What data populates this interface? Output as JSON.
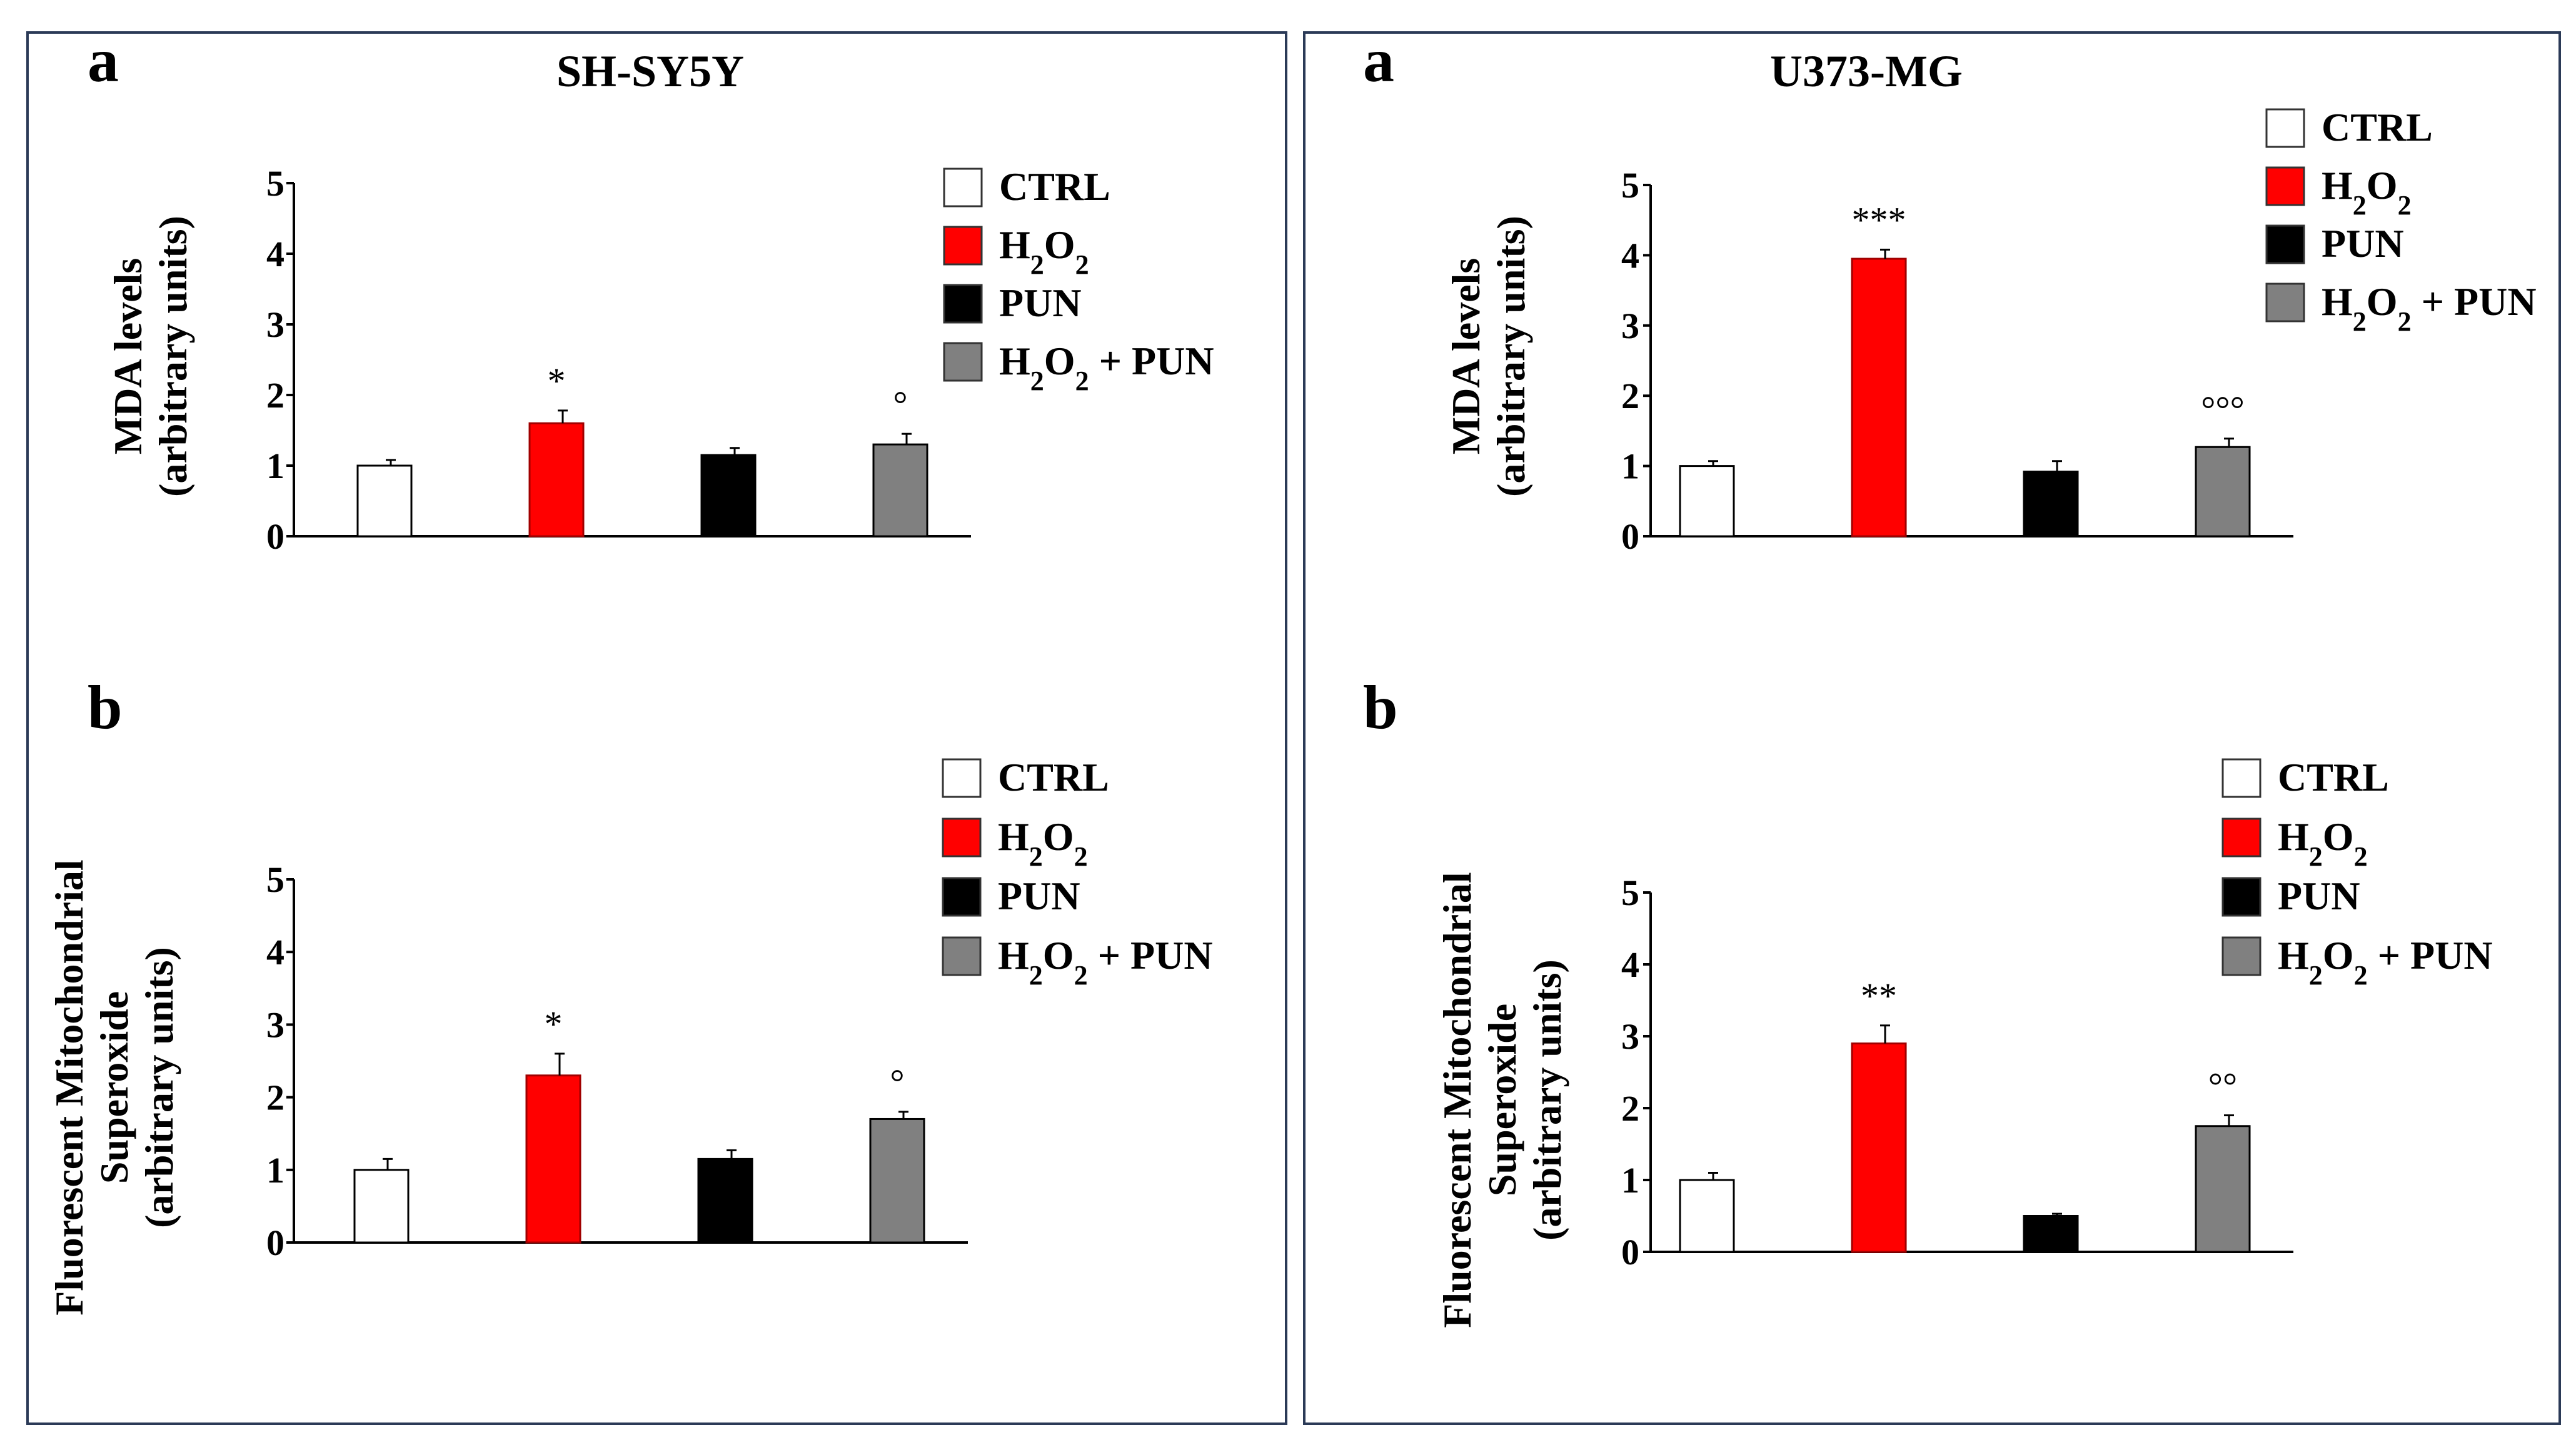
{
  "figure": {
    "left_title": "SH-SY5Y",
    "right_title": "U373-MG",
    "panel_labels": [
      "a",
      "b",
      "a",
      "b"
    ],
    "legend": [
      {
        "label": "CTRL",
        "color": "#ffffff"
      },
      {
        "label": "H2O2",
        "color": "#ff0000"
      },
      {
        "label": "PUN",
        "color": "#000000"
      },
      {
        "label": "H2O2 + PUN",
        "color": "#808080"
      }
    ]
  },
  "chart_data": [
    {
      "type": "bar",
      "cell_line": "SH-SY5Y",
      "panel": "a",
      "categories": [
        "CTRL",
        "H2O2",
        "PUN",
        "H2O2 + PUN"
      ],
      "values": [
        1.0,
        1.6,
        1.15,
        1.3
      ],
      "errors": [
        0.08,
        0.18,
        0.1,
        0.15
      ],
      "significance": [
        "",
        "*",
        "",
        "°"
      ],
      "colors": [
        "#ffffff",
        "#ff0000",
        "#000000",
        "#808080"
      ],
      "ylabel": [
        "MDA levels",
        "(arbitrary units)"
      ],
      "yticks": [
        0,
        1,
        2,
        3,
        4,
        5
      ],
      "ylim": [
        0,
        5
      ]
    },
    {
      "type": "bar",
      "cell_line": "SH-SY5Y",
      "panel": "b",
      "categories": [
        "CTRL",
        "H2O2",
        "PUN",
        "H2O2 + PUN"
      ],
      "values": [
        1.0,
        2.3,
        1.15,
        1.7
      ],
      "errors": [
        0.15,
        0.3,
        0.12,
        0.1
      ],
      "significance": [
        "",
        "*",
        "",
        "°"
      ],
      "colors": [
        "#ffffff",
        "#ff0000",
        "#000000",
        "#808080"
      ],
      "ylabel": [
        "Fluorescent Mitochondrial",
        "Superoxide",
        "(arbitrary units)"
      ],
      "yticks": [
        0,
        1,
        2,
        3,
        4,
        5
      ],
      "ylim": [
        0,
        5
      ]
    },
    {
      "type": "bar",
      "cell_line": "U373-MG",
      "panel": "a",
      "categories": [
        "CTRL",
        "H2O2",
        "PUN",
        "H2O2 + PUN"
      ],
      "values": [
        1.0,
        3.95,
        0.92,
        1.27
      ],
      "errors": [
        0.07,
        0.13,
        0.15,
        0.12
      ],
      "significance": [
        "",
        "***",
        "",
        "°°°"
      ],
      "colors": [
        "#ffffff",
        "#ff0000",
        "#000000",
        "#808080"
      ],
      "ylabel": [
        "MDA levels",
        "(arbitrary units)"
      ],
      "yticks": [
        0,
        1,
        2,
        3,
        4,
        5
      ],
      "ylim": [
        0,
        5
      ]
    },
    {
      "type": "bar",
      "cell_line": "U373-MG",
      "panel": "b",
      "categories": [
        "CTRL",
        "H2O2",
        "PUN",
        "H2O2 + PUN"
      ],
      "values": [
        1.0,
        2.9,
        0.5,
        1.75
      ],
      "errors": [
        0.1,
        0.25,
        0.03,
        0.15
      ],
      "significance": [
        "",
        "**",
        "",
        "°°"
      ],
      "colors": [
        "#ffffff",
        "#ff0000",
        "#000000",
        "#808080"
      ],
      "ylabel": [
        "Fluorescent Mitochondrial",
        "Superoxide",
        "(arbitrary units)"
      ],
      "yticks": [
        0,
        1,
        2,
        3,
        4,
        5
      ],
      "ylim": [
        0,
        5
      ]
    }
  ]
}
